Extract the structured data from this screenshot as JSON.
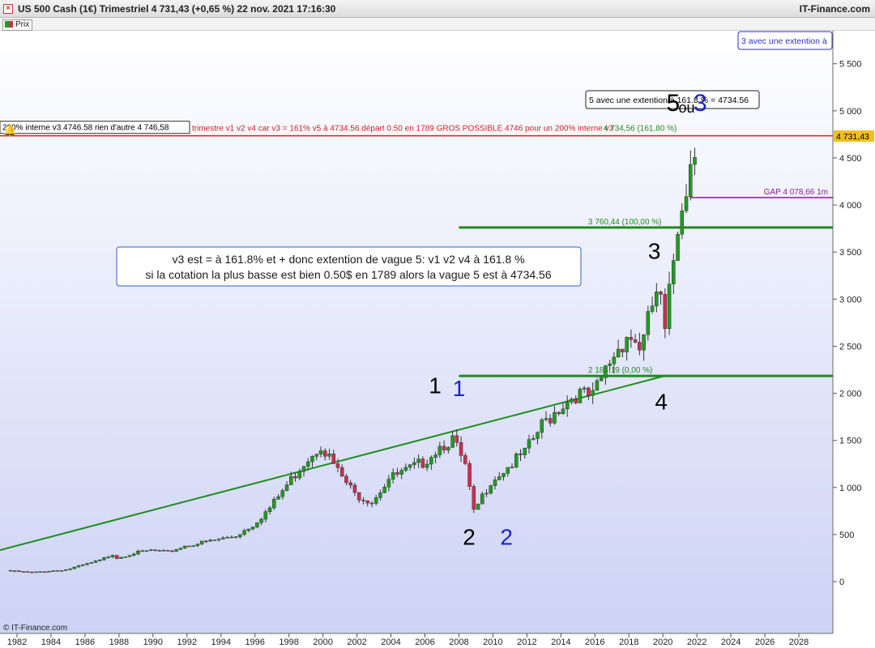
{
  "titlebar": {
    "close_label": "×",
    "title": "US 500 Cash (1€) Trimestriel 4 731,43 (+0,65 %) 22 nov. 2021 17:16:30",
    "brand": "IT-Finance.com"
  },
  "legend": {
    "label": "Prix"
  },
  "colors": {
    "up_candle": "#1e9e1e",
    "down_candle": "#cc2f4c",
    "background_top": "#ffffff",
    "background_bottom": "#cdd3f5",
    "trendline": "#1e8c1e",
    "resistance": "#d62020",
    "gap_line": "#8a1a9a",
    "fib_line": "#1f8a1f",
    "wave_black": "#000000",
    "wave_blue": "#1a23c8"
  },
  "icons": {
    "alert": "bell-icon",
    "close": "close-icon"
  },
  "chart_data": {
    "type": "candlestick",
    "timeframe": "quarterly",
    "x_range": [
      1981,
      2030
    ],
    "ylim": [
      -550,
      5850
    ],
    "x_ticks": [
      1982,
      1984,
      1986,
      1988,
      1990,
      1992,
      1994,
      1996,
      1998,
      2000,
      2002,
      2004,
      2006,
      2008,
      2010,
      2012,
      2014,
      2016,
      2018,
      2020,
      2022,
      2024,
      2026,
      2028
    ],
    "y_ticks": [
      0,
      500,
      1000,
      1500,
      2000,
      2500,
      3000,
      3500,
      4000,
      4500,
      5000,
      5500
    ],
    "y_tick_labels": [
      "0",
      "500",
      "1 000",
      "1 500",
      "2 000",
      "2 500",
      "3 000",
      "3 500",
      "4 000",
      "4 500",
      "5 000",
      "5 500"
    ],
    "price_key": [
      [
        1981.5,
        120
      ],
      [
        1983,
        100
      ],
      [
        1985,
        130
      ],
      [
        1986,
        180
      ],
      [
        1987,
        230
      ],
      [
        1987.75,
        300
      ],
      [
        1988,
        260
      ],
      [
        1989,
        310
      ],
      [
        1990,
        340
      ],
      [
        1991,
        320
      ],
      [
        1992,
        390
      ],
      [
        1994,
        460
      ],
      [
        1995,
        500
      ],
      [
        1996,
        620
      ],
      [
        1997,
        800
      ],
      [
        1998,
        1050
      ],
      [
        1999,
        1300
      ],
      [
        2000,
        1500
      ],
      [
        2001,
        1200
      ],
      [
        2002,
        950
      ],
      [
        2003,
        880
      ],
      [
        2004,
        1120
      ],
      [
        2005,
        1200
      ],
      [
        2006,
        1300
      ],
      [
        2007,
        1480
      ],
      [
        2007.75,
        1550
      ],
      [
        2008.5,
        1250
      ],
      [
        2009,
        750
      ],
      [
        2010,
        1100
      ],
      [
        2011,
        1250
      ],
      [
        2012,
        1400
      ],
      [
        2013,
        1700
      ],
      [
        2014,
        1900
      ],
      [
        2015,
        2050
      ],
      [
        2016,
        2000
      ],
      [
        2017,
        2400
      ],
      [
        2018,
        2700
      ],
      [
        2018.9,
        2550
      ],
      [
        2019.5,
        3000
      ],
      [
        2019.9,
        3230
      ],
      [
        2020.2,
        2600
      ],
      [
        2020.5,
        3100
      ],
      [
        2020.9,
        3750
      ],
      [
        2021.25,
        4200
      ],
      [
        2021.6,
        4400
      ],
      [
        2021.9,
        4731.43
      ]
    ],
    "last_price": {
      "value": 4731.43,
      "label": "4 731,43"
    },
    "horizontal_lines": [
      {
        "name": "resistance",
        "value": 4734.56,
        "color": "#d62020",
        "from_x": 1981
      },
      {
        "name": "gap",
        "value": 4078.66,
        "color": "#8a1a9a",
        "from_x": 2021.6,
        "label": "GAP 4 078,66 1m"
      },
      {
        "name": "fib-100",
        "value": 3760.44,
        "color": "#1f8a1f",
        "from_x": 2008.0,
        "label": "3 760,44 (100,00 %)"
      },
      {
        "name": "fib-0",
        "value": 2184.19,
        "color": "#1f8a1f",
        "from_x": 2008.0,
        "label": "2 184,19 (0,00 %)"
      }
    ],
    "trendline": {
      "from": [
        1981,
        335
      ],
      "to": [
        2020.0,
        2180
      ]
    },
    "annotations": {
      "fib_top_label": "4 734,56 (161,80 %)",
      "red_note": "trimestre v1 v2 v4 car v3 = 161% v5 à 4734.56 départ 0.50 en 1789   GROS   POSSIBLE 4746  pour un 200% interne v3",
      "box_200": "200% interne v3 4746.58 rien d'autre 4 746,58",
      "box_extension_5": "5 avec une extention à 161.8 % = 4734.56",
      "box_extension_3": "3 avec une extention à",
      "main_text_line1": "v3 est = à 161.8% et + donc extention de vague 5: v1 v2 v4 à 161.8 %",
      "main_text_line2": "si la cotation la plus basse est bien 0.50$ en 1789 alors la vague 5 est à  4734.56",
      "copyright": "© IT-Finance.com"
    },
    "wave_labels": [
      {
        "text": "1",
        "x": 2006.6,
        "y": 2000,
        "color": "black"
      },
      {
        "text": "1",
        "x": 2008.0,
        "y": 1970,
        "color": "blue"
      },
      {
        "text": "2",
        "x": 2008.6,
        "y": 390,
        "color": "black"
      },
      {
        "text": "2",
        "x": 2010.8,
        "y": 390,
        "color": "blue"
      },
      {
        "text": "3",
        "x": 2019.5,
        "y": 3430,
        "color": "black"
      },
      {
        "text": "4",
        "x": 2019.9,
        "y": 1830,
        "color": "black"
      },
      {
        "text": "5",
        "x": 2020.6,
        "y": 5000,
        "color": "black"
      },
      {
        "text": "ou",
        "x": 2021.4,
        "y": 4980,
        "color": "black"
      },
      {
        "text": "3",
        "x": 2022.2,
        "y": 5000,
        "color": "blue"
      }
    ]
  }
}
